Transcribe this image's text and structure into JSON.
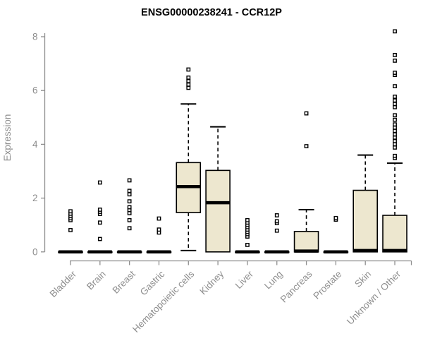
{
  "chart_data": {
    "type": "boxplot",
    "title": "ENSG00000238241 - CCR12P",
    "ylabel": "Expression",
    "xlabel": "",
    "ylim": [
      0,
      8.5
    ],
    "yticks": [
      0,
      2,
      4,
      6,
      8
    ],
    "grid": false,
    "legend": false,
    "categories": [
      "Bladder",
      "Brain",
      "Breast",
      "Gastric",
      "Hematopoietic cells",
      "Kidney",
      "Liver",
      "Lung",
      "Pancreas",
      "Prostate",
      "Skin",
      "Unknown / Other"
    ],
    "boxes": [
      {
        "category": "Bladder",
        "low": 0,
        "q1": 0,
        "median": 0,
        "q3": 0,
        "high": 0,
        "outliers": [
          0.81,
          1.18,
          1.25,
          1.33,
          1.42,
          1.51
        ]
      },
      {
        "category": "Brain",
        "low": 0,
        "q1": 0,
        "median": 0,
        "q3": 0,
        "high": 0,
        "outliers": [
          0.48,
          1.09,
          1.41,
          1.49,
          1.57,
          2.58
        ]
      },
      {
        "category": "Breast",
        "low": 0,
        "q1": 0,
        "median": 0,
        "q3": 0,
        "high": 0,
        "outliers": [
          0.88,
          1.18,
          1.44,
          1.56,
          1.66,
          1.88,
          2.14,
          2.27,
          2.66
        ]
      },
      {
        "category": "Gastric",
        "low": 0,
        "q1": 0,
        "median": 0,
        "q3": 0,
        "high": 0,
        "outliers": [
          0.72,
          0.83,
          1.24
        ]
      },
      {
        "category": "Hematopoietic cells",
        "low": 0.05,
        "q1": 1.46,
        "median": 2.43,
        "q3": 3.32,
        "high": 5.5,
        "outliers": [
          6.1,
          6.22,
          6.35,
          6.48,
          6.78
        ]
      },
      {
        "category": "Kidney",
        "low": 0,
        "q1": 0,
        "median": 1.83,
        "q3": 3.03,
        "high": 4.65,
        "outliers": []
      },
      {
        "category": "Liver",
        "low": 0,
        "q1": 0,
        "median": 0,
        "q3": 0,
        "high": 0,
        "outliers": [
          0.26,
          0.57,
          0.66,
          0.74,
          0.83,
          0.92,
          1.0,
          1.09,
          1.18
        ]
      },
      {
        "category": "Lung",
        "low": 0,
        "q1": 0,
        "median": 0,
        "q3": 0,
        "high": 0,
        "outliers": [
          0.79,
          1.07,
          1.14,
          1.36
        ]
      },
      {
        "category": "Pancreas",
        "low": 0,
        "q1": 0,
        "median": 0.03,
        "q3": 0.76,
        "high": 1.57,
        "outliers": [
          3.93,
          5.15
        ]
      },
      {
        "category": "Prostate",
        "low": 0,
        "q1": 0,
        "median": 0,
        "q3": 0,
        "high": 0,
        "outliers": [
          1.2,
          1.26
        ]
      },
      {
        "category": "Skin",
        "low": 0,
        "q1": 0,
        "median": 0.05,
        "q3": 2.29,
        "high": 3.6,
        "outliers": []
      },
      {
        "category": "Unknown / Other",
        "low": 0,
        "q1": 0,
        "median": 0.05,
        "q3": 1.36,
        "high": 3.3,
        "outliers": [
          3.49,
          3.57,
          3.88,
          4.0,
          4.12,
          4.25,
          4.37,
          4.5,
          4.62,
          4.74,
          4.91,
          5.08,
          5.38,
          5.5,
          5.63,
          5.77,
          6.16,
          6.58,
          6.66,
          7.11,
          7.32,
          8.2
        ]
      }
    ],
    "colors": {
      "box_fill": "#EDE7CF",
      "box_border": "#000000",
      "median": "#000000",
      "whisker": "#000000",
      "outlier": "#000000",
      "axis": "#8e8e8e",
      "tick_label": "#8e8e8e",
      "title": "#000000"
    }
  }
}
